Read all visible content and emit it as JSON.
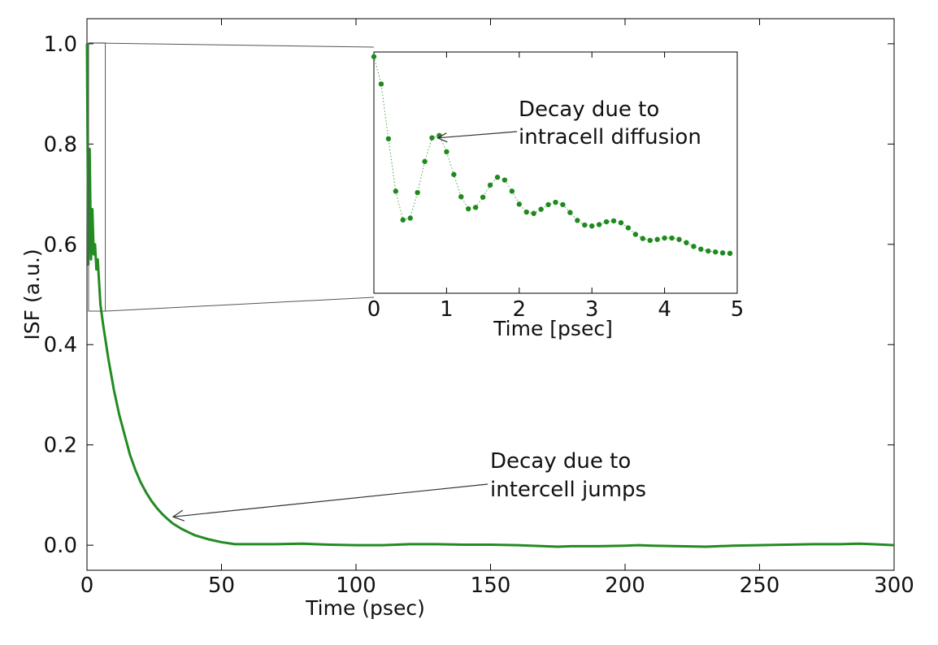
{
  "chart_data": [
    {
      "type": "line",
      "role": "main",
      "title": "",
      "xlabel": "Time (psec)",
      "ylabel": "ISF (a.u.)",
      "xlim": [
        0,
        300
      ],
      "ylim": [
        -0.05,
        1.05
      ],
      "xticks": [
        0,
        50,
        100,
        150,
        200,
        250,
        300
      ],
      "yticks": [
        0.0,
        0.2,
        0.4,
        0.6,
        0.8,
        1.0
      ],
      "xtick_labels": [
        "0",
        "50",
        "100",
        "150",
        "200",
        "250",
        "300"
      ],
      "ytick_labels": [
        "0.0",
        "0.2",
        "0.4",
        "0.6",
        "0.8",
        "1.0"
      ],
      "grid": false,
      "series": [
        {
          "color": "#228b22",
          "x": [
            0,
            0.5,
            1,
            1.5,
            2,
            2.5,
            3,
            3.5,
            4,
            5,
            6,
            8,
            10,
            12,
            14,
            16,
            18,
            20,
            22,
            24,
            26,
            28,
            30,
            32,
            35,
            38,
            40,
            45,
            50,
            55,
            60,
            70,
            80,
            90,
            100,
            110,
            120,
            130,
            140,
            150,
            160,
            170,
            175,
            180,
            190,
            200,
            205,
            210,
            220,
            230,
            240,
            250,
            260,
            270,
            280,
            287,
            292,
            300
          ],
          "y": [
            1.0,
            0.56,
            0.79,
            0.57,
            0.67,
            0.58,
            0.6,
            0.55,
            0.57,
            0.48,
            0.44,
            0.37,
            0.31,
            0.26,
            0.22,
            0.18,
            0.15,
            0.125,
            0.105,
            0.088,
            0.074,
            0.062,
            0.052,
            0.043,
            0.033,
            0.025,
            0.02,
            0.012,
            0.006,
            0.002,
            0.002,
            0.002,
            0.003,
            0.001,
            0.0,
            0.0,
            0.002,
            0.002,
            0.001,
            0.001,
            0.0,
            -0.002,
            -0.003,
            -0.002,
            -0.002,
            -0.001,
            0.0,
            -0.001,
            -0.002,
            -0.003,
            -0.001,
            0.0,
            0.001,
            0.002,
            0.002,
            0.003,
            0.002,
            0.0
          ]
        }
      ],
      "annotations": [
        {
          "text_lines": [
            "Decay due to",
            "intercell jumps"
          ],
          "point": [
            35,
            0.055
          ]
        }
      ]
    },
    {
      "type": "scatter",
      "role": "inset",
      "title": "",
      "xlabel": "Time [psec]",
      "ylabel": "",
      "xlim": [
        0,
        5
      ],
      "ylim": [
        0.47,
        0.99
      ],
      "xticks": [
        0,
        1,
        2,
        3,
        4,
        5
      ],
      "xtick_labels": [
        "0",
        "1",
        "2",
        "3",
        "4",
        "5"
      ],
      "grid": false,
      "zoom_region": {
        "x": [
          0,
          5
        ],
        "y": [
          0.47,
          1.0
        ]
      },
      "series": [
        {
          "color": "#1e8a1e",
          "marker": "circle",
          "connected": "dotted",
          "x": [
            0.0,
            0.1,
            0.2,
            0.3,
            0.4,
            0.5,
            0.6,
            0.7,
            0.8,
            0.9,
            1.0,
            1.1,
            1.2,
            1.3,
            1.4,
            1.5,
            1.6,
            1.7,
            1.8,
            1.9,
            2.0,
            2.1,
            2.2,
            2.3,
            2.4,
            2.5,
            2.6,
            2.7,
            2.8,
            2.9,
            3.0,
            3.1,
            3.2,
            3.3,
            3.4,
            3.5,
            3.6,
            3.7,
            3.8,
            3.9,
            4.0,
            4.1,
            4.2,
            4.3,
            4.4,
            4.5,
            4.6,
            4.7,
            4.8,
            4.9
          ],
          "y": [
            0.98,
            0.921,
            0.803,
            0.69,
            0.628,
            0.632,
            0.687,
            0.754,
            0.805,
            0.81,
            0.775,
            0.726,
            0.678,
            0.652,
            0.655,
            0.677,
            0.703,
            0.72,
            0.714,
            0.69,
            0.662,
            0.645,
            0.642,
            0.651,
            0.661,
            0.666,
            0.661,
            0.644,
            0.627,
            0.617,
            0.615,
            0.618,
            0.624,
            0.626,
            0.622,
            0.611,
            0.597,
            0.588,
            0.584,
            0.586,
            0.589,
            0.589,
            0.586,
            0.579,
            0.571,
            0.565,
            0.561,
            0.559,
            0.557,
            0.556
          ]
        }
      ],
      "annotations": [
        {
          "text_lines": [
            "Decay due to",
            "intracell diffusion"
          ],
          "point": [
            0.82,
            0.803
          ]
        }
      ]
    }
  ]
}
